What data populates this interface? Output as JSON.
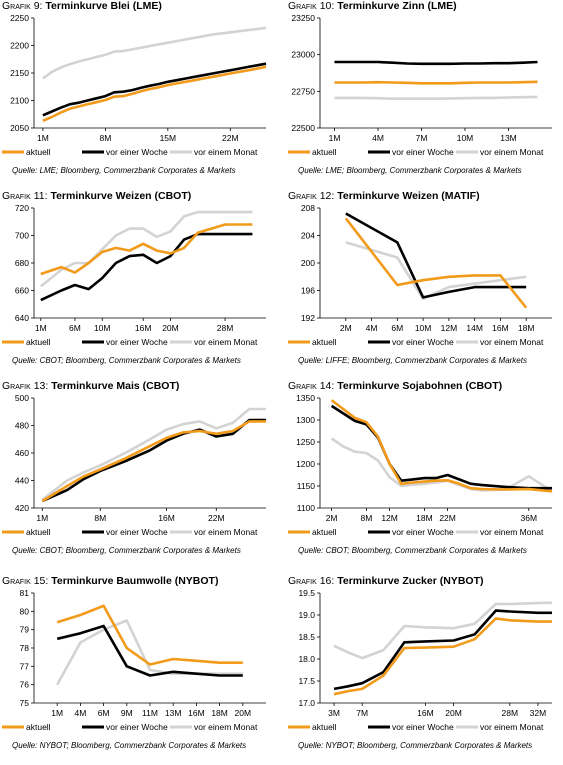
{
  "colors": {
    "aktuell": "#f29a1a",
    "woche": "#000000",
    "monat": "#d3d3d3"
  },
  "legend": [
    "aktuell",
    "vor einer Woche",
    "vor einem Monat"
  ],
  "charts": [
    {
      "prefix": "Grafik 9:",
      "title": "Terminkurve Blei (LME)",
      "source": "Quelle: LME; Bloomberg, Commerzbank Corporates & Markets",
      "xticks": [
        "1M",
        "8M",
        "15M",
        "22M"
      ],
      "yticks": [
        "2050",
        "2100",
        "2150",
        "2200",
        "2250"
      ],
      "chart_data": {
        "type": "line",
        "xlim": [
          0,
          26
        ],
        "ylim": [
          2050,
          2250
        ],
        "xtick_pos": [
          1,
          8,
          15,
          22
        ],
        "ytick_vals": [
          2050,
          2100,
          2150,
          2200,
          2250
        ],
        "x": [
          1,
          2,
          3,
          4,
          5,
          6,
          7,
          8,
          9,
          10,
          11,
          12,
          13,
          14,
          15,
          16,
          17,
          18,
          19,
          20,
          21,
          22,
          23,
          24,
          25,
          26
        ],
        "series": [
          {
            "name": "aktuell",
            "values": [
              2063,
              2070,
              2078,
              2085,
              2089,
              2093,
              2097,
              2101,
              2107,
              2108,
              2112,
              2117,
              2121,
              2124,
              2128,
              2131,
              2134,
              2137,
              2140,
              2143,
              2146,
              2149,
              2152,
              2155,
              2158,
              2161
            ]
          },
          {
            "name": "vor einer Woche",
            "values": [
              2073,
              2080,
              2087,
              2093,
              2096,
              2100,
              2104,
              2108,
              2115,
              2116,
              2119,
              2123,
              2127,
              2130,
              2134,
              2137,
              2140,
              2143,
              2146,
              2149,
              2152,
              2155,
              2158,
              2161,
              2164,
              2167
            ]
          },
          {
            "name": "vor einem Monat",
            "values": [
              2140,
              2152,
              2160,
              2166,
              2171,
              2175,
              2179,
              2183,
              2189,
              2190,
              2193,
              2196,
              2199,
              2202,
              2205,
              2208,
              2211,
              2214,
              2217,
              2220,
              2222,
              2224,
              2226,
              2228,
              2230,
              2232
            ]
          }
        ]
      }
    },
    {
      "prefix": "Grafik 10:",
      "title": "Terminkurve Zinn (LME)",
      "source": "Quelle: LME; Bloomberg, Commerzbank Corporates & Markets",
      "xticks": [
        "1M",
        "4M",
        "7M",
        "10M",
        "13M"
      ],
      "yticks": [
        "22500",
        "22750",
        "23000",
        "23250"
      ],
      "chart_data": {
        "type": "line",
        "xlim": [
          0,
          16
        ],
        "ylim": [
          22500,
          23250
        ],
        "xtick_pos": [
          1,
          4,
          7,
          10,
          13
        ],
        "ytick_vals": [
          22500,
          22750,
          23000,
          23250
        ],
        "x": [
          1,
          2,
          3,
          4,
          5,
          6,
          7,
          8,
          9,
          10,
          11,
          12,
          13,
          14,
          15
        ],
        "series": [
          {
            "name": "aktuell",
            "values": [
              22810,
              22810,
              22810,
              22812,
              22810,
              22808,
              22805,
              22805,
              22805,
              22808,
              22810,
              22810,
              22810,
              22812,
              22815
            ]
          },
          {
            "name": "vor einer Woche",
            "values": [
              22950,
              22950,
              22950,
              22950,
              22945,
              22940,
              22938,
              22938,
              22938,
              22940,
              22940,
              22942,
              22942,
              22945,
              22950
            ]
          },
          {
            "name": "vor einem Monat",
            "values": [
              22705,
              22705,
              22705,
              22703,
              22700,
              22700,
              22700,
              22700,
              22702,
              22703,
              22705,
              22705,
              22708,
              22710,
              22712
            ]
          }
        ]
      }
    },
    {
      "prefix": "Grafik 11:",
      "title": "Terminkurve Weizen (CBOT)",
      "source": "Quelle: CBOT; Bloomberg, Commerzbank Corporates & Markets",
      "xticks": [
        "1M",
        "6M",
        "10M",
        "16M",
        "20M",
        "28M"
      ],
      "yticks": [
        "640",
        "660",
        "680",
        "700",
        "720"
      ],
      "chart_data": {
        "type": "line",
        "xlim": [
          0,
          34
        ],
        "ylim": [
          640,
          720
        ],
        "xtick_pos": [
          1,
          6,
          10,
          16,
          20,
          28
        ],
        "ytick_vals": [
          640,
          660,
          680,
          700,
          720
        ],
        "x": [
          1,
          4,
          6,
          8,
          10,
          12,
          14,
          16,
          18,
          20,
          22,
          24,
          28,
          32
        ],
        "series": [
          {
            "name": "aktuell",
            "values": [
              672,
              677,
              673,
              680,
              688,
              691,
              689,
              694,
              689,
              687,
              691,
              702,
              708,
              708
            ]
          },
          {
            "name": "vor einer Woche",
            "values": [
              653,
              660,
              664,
              661,
              669,
              680,
              685,
              686,
              680,
              685,
              697,
              701,
              701,
              701
            ]
          },
          {
            "name": "vor einem Monat",
            "values": [
              663,
              675,
              680,
              680,
              690,
              700,
              705,
              705,
              699,
              703,
              714,
              717,
              717,
              717
            ]
          }
        ]
      }
    },
    {
      "prefix": "Grafik 12:",
      "title": "Terminkurve Weizen (MATIF)",
      "source": "Quelle: LIFFE; Bloomberg, Commerzbank Corporates & Markets",
      "xticks": [
        "2M",
        "4M",
        "6M",
        "10M",
        "12M",
        "14M",
        "16M",
        "18M"
      ],
      "yticks": [
        "192",
        "196",
        "200",
        "204",
        "208"
      ],
      "chart_data": {
        "type": "line",
        "xlim": [
          0,
          9
        ],
        "ylim": [
          192,
          208
        ],
        "xtick_pos": [
          1,
          2,
          3,
          4,
          5,
          6,
          7,
          8
        ],
        "ytick_vals": [
          192,
          196,
          200,
          204,
          208
        ],
        "x": [
          1,
          3,
          4,
          5,
          6,
          7,
          8
        ],
        "series": [
          {
            "name": "aktuell",
            "values": [
              206.5,
              196.8,
              197.5,
              198.0,
              198.2,
              198.2,
              193.5
            ]
          },
          {
            "name": "vor einer Woche",
            "values": [
              207.2,
              203.0,
              195.0,
              195.8,
              196.5,
              196.5,
              196.5
            ]
          },
          {
            "name": "vor einem Monat",
            "values": [
              203.0,
              200.8,
              194.8,
              196.5,
              197.0,
              197.5,
              198.0
            ]
          }
        ]
      }
    },
    {
      "prefix": "Grafik 13:",
      "title": "Terminkurve Mais (CBOT)",
      "source": "Quelle: CBOT; Bloomberg, Commerzbank Corporates & Markets",
      "xticks": [
        "1M",
        "8M",
        "16M",
        "22M"
      ],
      "yticks": [
        "420",
        "440",
        "460",
        "480",
        "500"
      ],
      "chart_data": {
        "type": "line",
        "xlim": [
          0,
          28
        ],
        "ylim": [
          420,
          500
        ],
        "xtick_pos": [
          1,
          8,
          16,
          22
        ],
        "ytick_vals": [
          420,
          440,
          460,
          480,
          500
        ],
        "x": [
          1,
          4,
          6,
          8,
          11,
          14,
          16,
          18,
          20,
          22,
          24,
          26,
          28
        ],
        "series": [
          {
            "name": "aktuell",
            "values": [
              425,
              436,
              443,
              448,
              456,
              465,
              471,
              475,
              476,
              474,
              476,
              483,
              483
            ]
          },
          {
            "name": "vor einer Woche",
            "values": [
              425,
              433,
              441,
              447,
              454,
              462,
              469,
              474,
              477,
              472,
              474,
              484,
              484
            ]
          },
          {
            "name": "vor einem Monat",
            "values": [
              426,
              440,
              446,
              451,
              460,
              470,
              477,
              481,
              483,
              478,
              482,
              492,
              492
            ]
          }
        ]
      }
    },
    {
      "prefix": "Grafik 14:",
      "title": "Terminkurve Sojabohnen (CBOT)",
      "source": "Quelle: CBOT; Bloomberg, Commerzbank Corporates & Markets",
      "xticks": [
        "2M",
        "8M",
        "12M",
        "18M",
        "22M",
        "36M"
      ],
      "yticks": [
        "1100",
        "1150",
        "1200",
        "1250",
        "1300",
        "1350"
      ],
      "chart_data": {
        "type": "line",
        "xlim": [
          0,
          40
        ],
        "ylim": [
          1100,
          1350
        ],
        "xtick_pos": [
          2,
          8,
          12,
          18,
          22,
          36
        ],
        "ytick_vals": [
          1100,
          1150,
          1200,
          1250,
          1300,
          1350
        ],
        "x": [
          2,
          4,
          6,
          8,
          10,
          12,
          14,
          16,
          18,
          20,
          22,
          24,
          26,
          28,
          32,
          36,
          40
        ],
        "series": [
          {
            "name": "aktuell",
            "values": [
              1345,
              1325,
              1305,
              1295,
              1262,
              1200,
              1155,
              1158,
              1160,
              1162,
              1163,
              1155,
              1145,
              1143,
              1142,
              1143,
              1138
            ]
          },
          {
            "name": "vor einer Woche",
            "values": [
              1332,
              1315,
              1298,
              1290,
              1260,
              1200,
              1162,
              1165,
              1168,
              1168,
              1175,
              1165,
              1155,
              1152,
              1148,
              1145,
              1145
            ]
          },
          {
            "name": "vor einem Monat",
            "values": [
              1258,
              1240,
              1228,
              1225,
              1208,
              1170,
              1150,
              1153,
              1155,
              1158,
              1162,
              1152,
              1143,
              1140,
              1142,
              1172,
              1138
            ]
          }
        ]
      }
    },
    {
      "prefix": "Grafik 15:",
      "title": "Terminkurve Baumwolle (NYBOT)",
      "source": "Quelle: NYBOT; Bloomberg, Commerzbank Corporates & Markets",
      "xticks": [
        "1M",
        "4M",
        "6M",
        "9M",
        "11M",
        "13M",
        "16M",
        "18M",
        "20M"
      ],
      "yticks": [
        "75",
        "76",
        "77",
        "78",
        "79",
        "80",
        "81"
      ],
      "chart_data": {
        "type": "line",
        "xlim": [
          0,
          10
        ],
        "ylim": [
          75,
          81
        ],
        "xtick_pos": [
          1,
          2,
          3,
          4,
          5,
          6,
          7,
          8,
          9
        ],
        "ytick_vals": [
          75,
          76,
          77,
          78,
          79,
          80,
          81
        ],
        "x": [
          1,
          2,
          3,
          4,
          5,
          6,
          7,
          8,
          9
        ],
        "series": [
          {
            "name": "aktuell",
            "values": [
              79.4,
              79.8,
              80.3,
              78.0,
              77.1,
              77.4,
              77.3,
              77.2,
              77.2
            ]
          },
          {
            "name": "vor einer Woche",
            "values": [
              78.5,
              78.8,
              79.2,
              77.0,
              76.5,
              76.7,
              76.6,
              76.5,
              76.5
            ]
          },
          {
            "name": "vor einem Monat",
            "values": [
              76.0,
              78.3,
              79.0,
              79.5,
              76.8,
              76.6,
              76.6,
              76.6,
              76.6
            ]
          }
        ]
      }
    },
    {
      "prefix": "Grafik 16:",
      "title": "Terminkurve Zucker (NYBOT)",
      "source": "Quelle: NYBOT; Bloomberg, Commerzbank Corporates & Markets",
      "xticks": [
        "3M",
        "7M",
        "16M",
        "20M",
        "28M",
        "32M"
      ],
      "yticks": [
        "17.0",
        "17.5",
        "18.0",
        "18.5",
        "19.0",
        "19.5"
      ],
      "chart_data": {
        "type": "line",
        "xlim": [
          1,
          34
        ],
        "ylim": [
          17.0,
          19.5
        ],
        "xtick_pos": [
          3,
          7,
          16,
          20,
          28,
          32
        ],
        "ytick_vals": [
          17.0,
          17.5,
          18.0,
          18.5,
          19.0,
          19.5
        ],
        "x": [
          3,
          5,
          7,
          10,
          13,
          16,
          20,
          23,
          26,
          28,
          32,
          34
        ],
        "series": [
          {
            "name": "aktuell",
            "values": [
              17.2,
              17.27,
              17.32,
              17.62,
              18.25,
              18.26,
              18.28,
              18.45,
              18.92,
              18.88,
              18.85,
              18.85
            ]
          },
          {
            "name": "vor einer Woche",
            "values": [
              17.32,
              17.38,
              17.45,
              17.7,
              18.38,
              18.4,
              18.42,
              18.56,
              19.1,
              19.08,
              19.05,
              19.05
            ]
          },
          {
            "name": "vor einem Monat",
            "values": [
              18.3,
              18.15,
              18.02,
              18.2,
              18.75,
              18.72,
              18.7,
              18.8,
              19.25,
              19.25,
              19.27,
              19.28
            ]
          }
        ]
      }
    }
  ]
}
